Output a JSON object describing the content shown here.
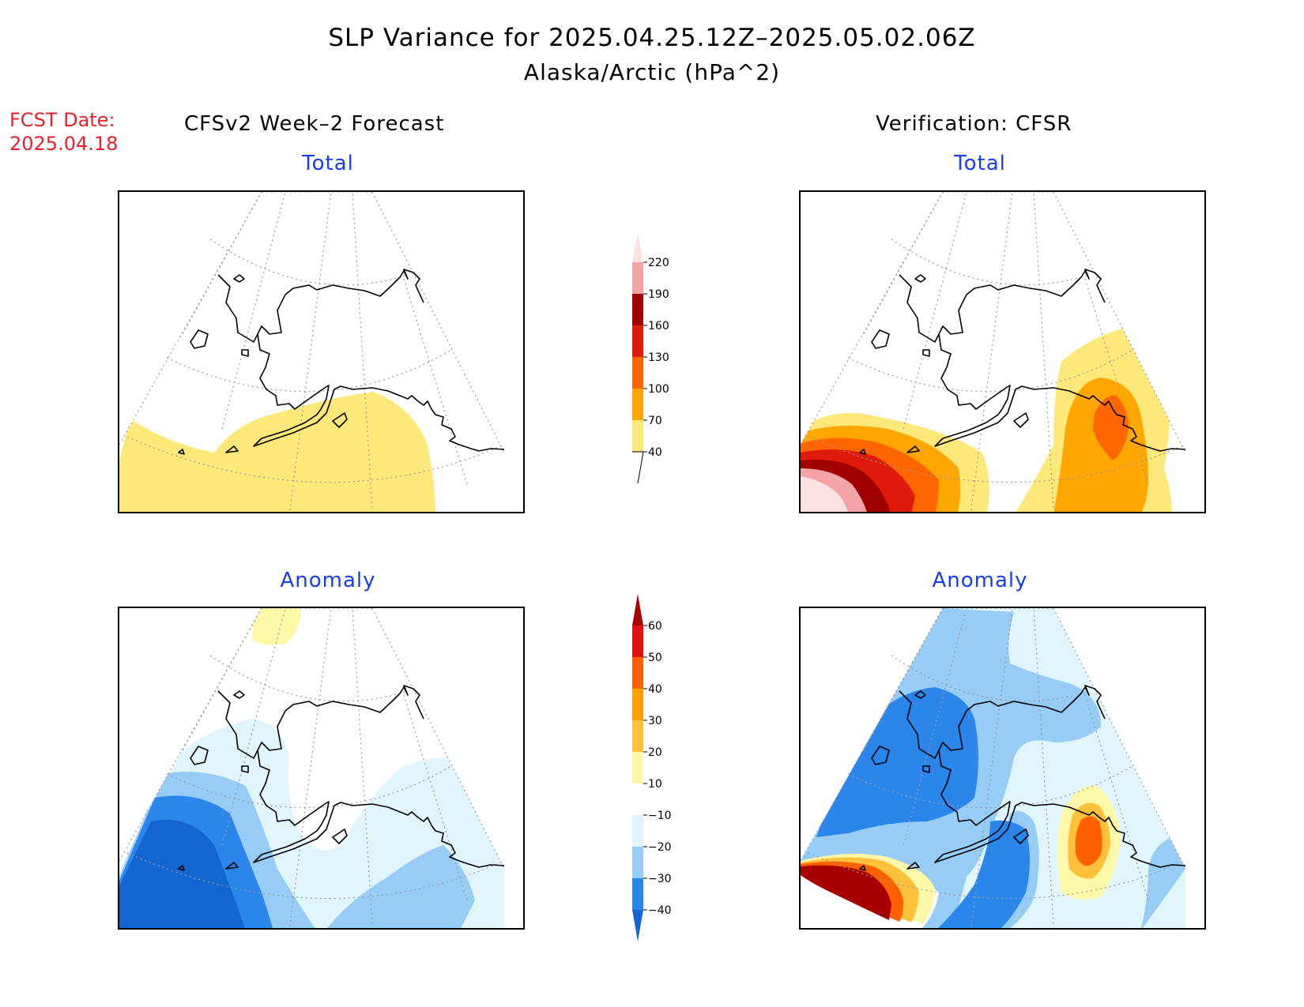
{
  "title": "SLP Variance for 2025.04.25.12Z–2025.05.02.06Z",
  "subtitle": "Alaska/Arctic (hPa^2)",
  "forecast_date": {
    "label": "FCST Date:",
    "value": "2025.04.18"
  },
  "columns": {
    "left": "CFSv2 Week–2 Forecast",
    "right": "Verification: CFSR"
  },
  "panels": {
    "fcst_total": {
      "label": "Total",
      "icon": "map-alaska-arctic"
    },
    "cfsr_total": {
      "label": "Total",
      "icon": "map-alaska-arctic"
    },
    "fcst_anomaly": {
      "label": "Anomaly",
      "icon": "map-alaska-arctic"
    },
    "cfsr_anomaly": {
      "label": "Anomaly",
      "icon": "map-alaska-arctic"
    }
  },
  "total_colorbar": {
    "levels": [
      "40",
      "70",
      "100",
      "130",
      "160",
      "190",
      "220"
    ],
    "colors": [
      "#ffe87a",
      "#ffa600",
      "#ff6600",
      "#e01b0b",
      "#a10000",
      "#f4a4a4",
      "#fde2e2"
    ]
  },
  "anomaly_colorbar": {
    "levels": [
      "−40",
      "−30",
      "−20",
      "−10",
      "10",
      "20",
      "30",
      "40",
      "50",
      "60"
    ],
    "colors": [
      "#1464d2",
      "#2a86ea",
      "#96ccf6",
      "#e0f6fc",
      "#ffffff",
      "#fff8a8",
      "#ffc03c",
      "#ffa000",
      "#ff6000",
      "#e01010",
      "#a80000"
    ]
  }
}
